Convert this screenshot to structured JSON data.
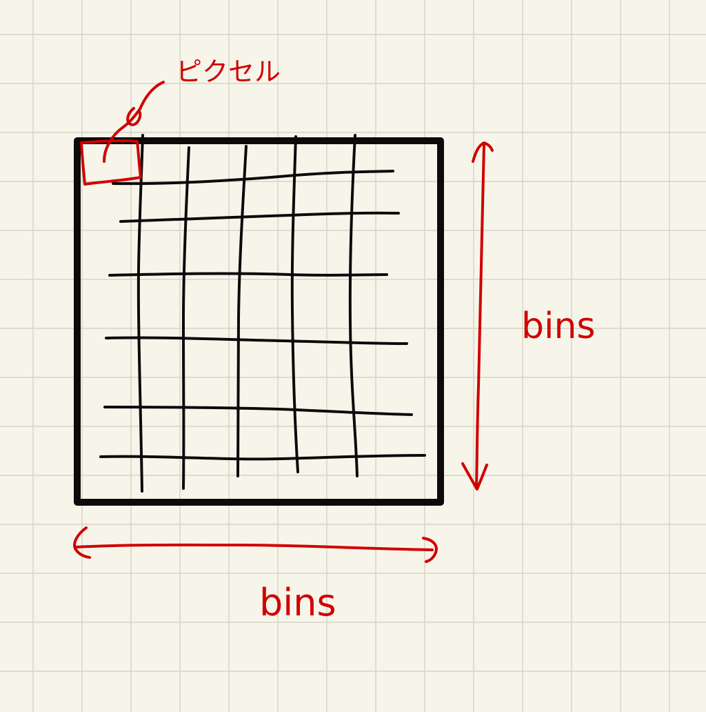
{
  "labels": {
    "pixel": "ピクセル",
    "vertical_size": "bins",
    "horizontal_size": "bins"
  },
  "colors": {
    "paper": "#f7f5ea",
    "grid_paper": "#d3d3c8",
    "ink": "#0b0b0b",
    "annotation": "#d00000"
  }
}
